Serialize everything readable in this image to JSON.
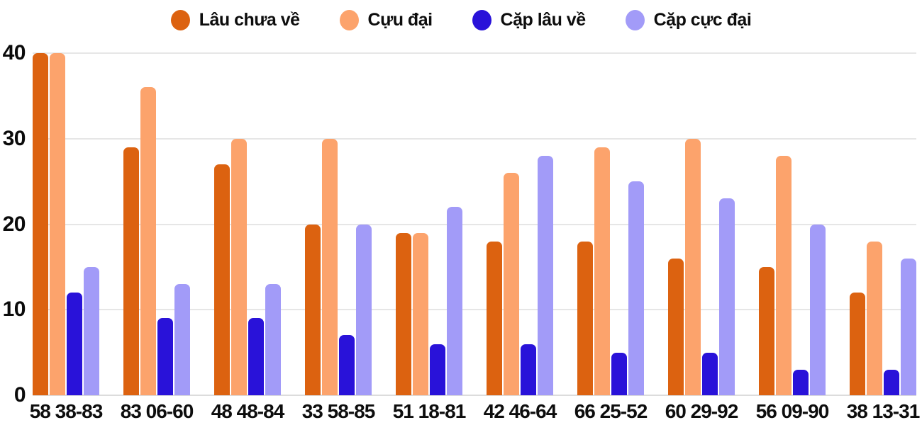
{
  "colors": {
    "background": "#ffffff",
    "grid": "#e6e6e6",
    "baseline": "#dcdcdc",
    "text": "#0d0d0d"
  },
  "chart_data": {
    "type": "bar",
    "title": "",
    "xlabel": "",
    "ylabel": "",
    "ylim": [
      0,
      40
    ],
    "yticks": [
      0,
      10,
      20,
      30,
      40
    ],
    "grid": true,
    "legend_position": "top",
    "categories": [
      "58 38-83",
      "83 06-60",
      "48 48-84",
      "33 58-85",
      "51 18-81",
      "42 46-64",
      "66 25-52",
      "60 29-92",
      "56 09-90",
      "38 13-31"
    ],
    "series": [
      {
        "name": "Lâu chưa về",
        "color": "#dc6210",
        "values": [
          40,
          29,
          27,
          20,
          19,
          18,
          18,
          16,
          15,
          12
        ]
      },
      {
        "name": "Cựu đại",
        "color": "#fca36c",
        "values": [
          40,
          36,
          30,
          30,
          19,
          26,
          29,
          30,
          28,
          18
        ]
      },
      {
        "name": "Cặp lâu về",
        "color": "#2912d9",
        "values": [
          12,
          9,
          9,
          7,
          6,
          6,
          5,
          5,
          3,
          3
        ]
      },
      {
        "name": "Cặp cực đại",
        "color": "#a29bf8",
        "values": [
          15,
          13,
          13,
          20,
          22,
          28,
          25,
          23,
          20,
          16
        ]
      }
    ]
  }
}
